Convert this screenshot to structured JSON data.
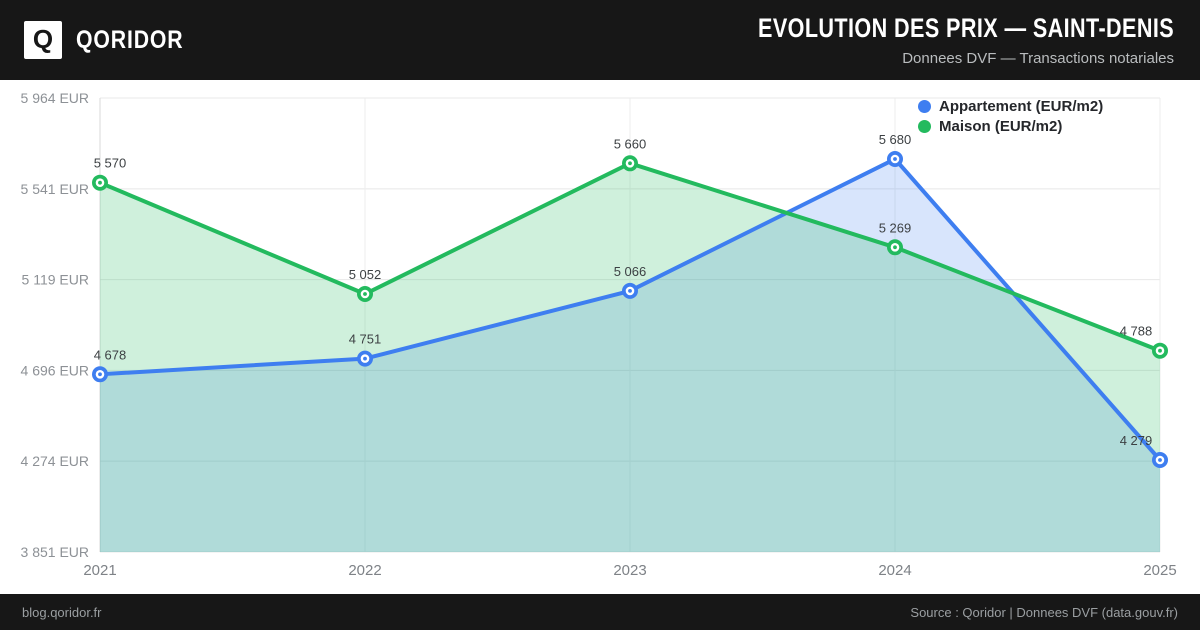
{
  "header": {
    "brand": "QORIDOR",
    "logo_letter": "Q",
    "title": "EVOLUTION DES PRIX — SAINT-DENIS",
    "subtitle": "Donnees DVF — Transactions notariales"
  },
  "footer": {
    "site": "blog.qoridor.fr",
    "source": "Source : Qoridor | Donnees DVF (data.gouv.fr)"
  },
  "chart_data": {
    "type": "line",
    "title": "Evolution des prix — Saint-Denis",
    "categories": [
      "2021",
      "2022",
      "2023",
      "2024",
      "2025"
    ],
    "series": [
      {
        "name": "Appartement (EUR/m2)",
        "color": "#3e7ef0",
        "fill": "rgba(62, 126, 240, 0.20)",
        "values": [
          4678,
          4751,
          5066,
          5680,
          4279
        ]
      },
      {
        "name": "Maison (EUR/m2)",
        "color": "#23ba5e",
        "fill": "rgba(35, 186, 94, 0.22)",
        "values": [
          5570,
          5052,
          5660,
          5269,
          4788
        ]
      }
    ],
    "y_ticks": [
      {
        "value": 5964,
        "label": "5 964 EUR"
      },
      {
        "value": 5541,
        "label": "5 541 EUR"
      },
      {
        "value": 5119,
        "label": "5 119 EUR"
      },
      {
        "value": 4696,
        "label": "4 696 EUR"
      },
      {
        "value": 4274,
        "label": "4 274 EUR"
      },
      {
        "value": 3851,
        "label": "3 851 EUR"
      }
    ],
    "ylim": [
      3851,
      5964
    ],
    "xlabel": "",
    "ylabel": "",
    "grid": true,
    "legend_position": "top-right",
    "point_labels_visible": true
  }
}
